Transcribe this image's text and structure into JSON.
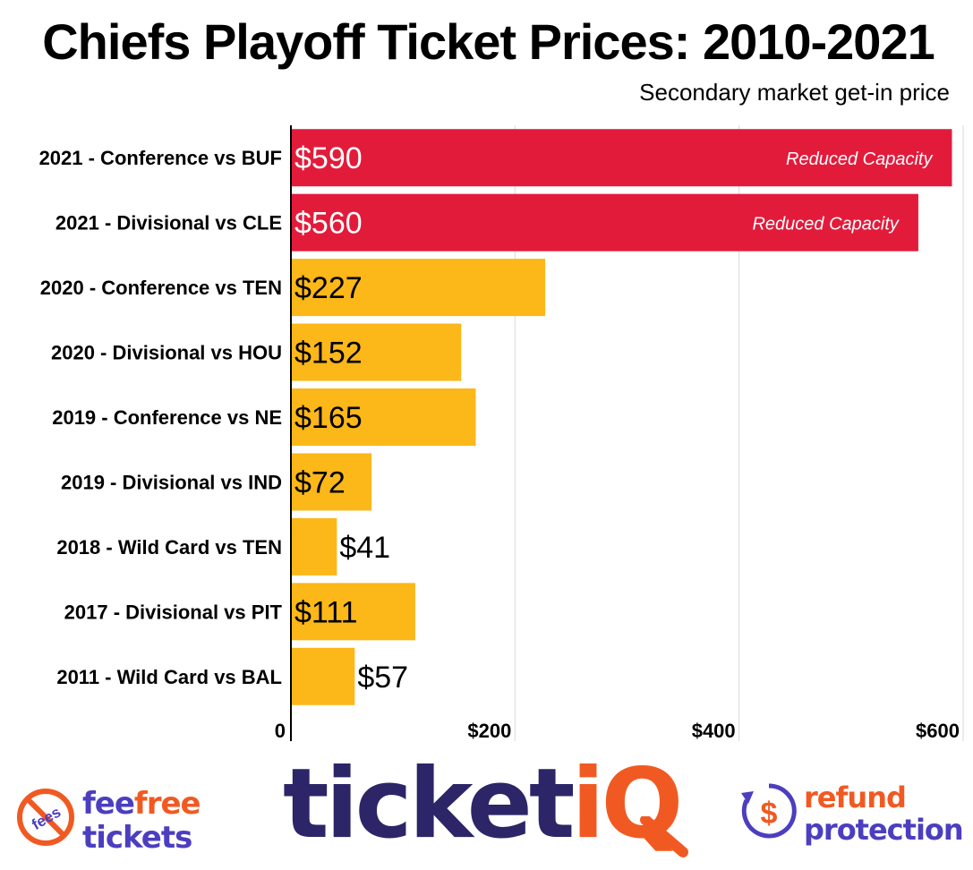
{
  "chart_data": {
    "type": "bar",
    "orientation": "horizontal",
    "title": "Chiefs Playoff Ticket Prices: 2010-2021",
    "subtitle": "Secondary market get-in price",
    "categories": [
      "2021 - Conference vs BUF",
      "2021 - Divisional vs CLE",
      "2020 - Conference vs TEN",
      "2020 - Divisional vs HOU",
      "2019 - Conference vs NE",
      "2019 - Divisional vs IND",
      "2018 - Wild Card vs TEN",
      "2017 - Divisional vs PIT",
      "2011 - Wild Card vs BAL"
    ],
    "values": [
      590,
      560,
      227,
      152,
      165,
      72,
      41,
      111,
      57
    ],
    "value_labels": [
      "$590",
      "$560",
      "$227",
      "$152",
      "$165",
      "$72",
      "$41",
      "$111",
      "$57"
    ],
    "annotations": [
      "Reduced Capacity",
      "Reduced Capacity",
      "",
      "",
      "",
      "",
      "",
      "",
      ""
    ],
    "bar_colors": [
      "#e31b3b",
      "#e31b3b",
      "#fcb719",
      "#fcb719",
      "#fcb719",
      "#fcb719",
      "#fcb719",
      "#fcb719",
      "#fcb719"
    ],
    "xlim": [
      0,
      600
    ],
    "xticks": [
      0,
      200,
      400,
      600
    ],
    "xtick_labels": [
      "0",
      "$200",
      "$400",
      "$600"
    ],
    "grid": true
  },
  "footer": {
    "left_logo": {
      "badge": "fees",
      "line1a": "fee",
      "line1b": "free",
      "line2": "tickets"
    },
    "center_logo": {
      "text_main": "ticket",
      "text_accent": "iQ"
    },
    "right_logo": {
      "badge": "$",
      "line1": "refund",
      "line2": "protection"
    }
  },
  "colors": {
    "red": "#e31b3b",
    "yellow": "#fcb719",
    "purple": "#4b3ec0",
    "navy": "#2c2567",
    "orange": "#f05a22"
  }
}
